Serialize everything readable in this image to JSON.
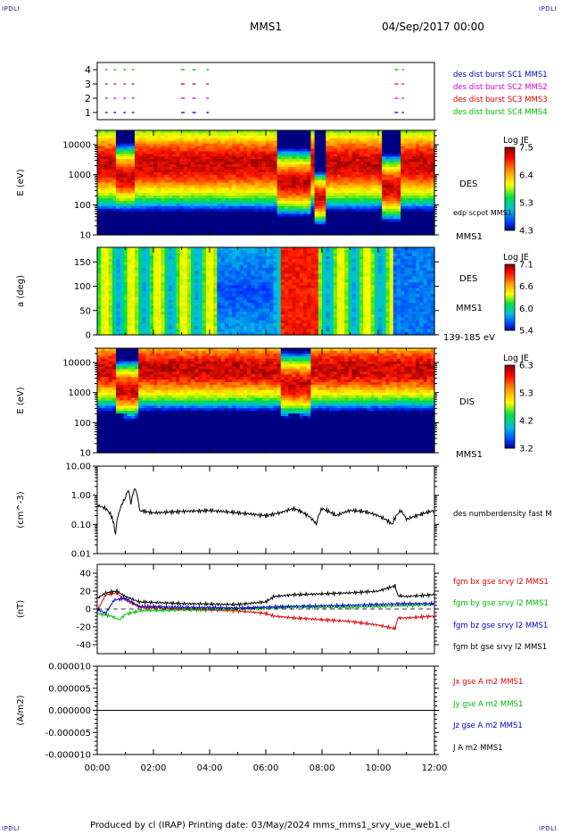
{
  "corners": {
    "tl": "IPDLI",
    "tr": "IPDLI",
    "bl": "IPDLI",
    "br": "IPDLI"
  },
  "header": {
    "spacecraft": "MMS1",
    "datetime": "04/Sep/2017 00:00"
  },
  "footer": "Produced by cl (IRAP)   Printing date: 03/May/2024   mms_mms1_srvy_vue_web1.cl",
  "time_axis": [
    "00:00",
    "02:00",
    "04:00",
    "06:00",
    "08:00",
    "10:00",
    "12:00"
  ],
  "colors": {
    "red": "#dd0000",
    "green": "#00bb00",
    "blue": "#0000cc",
    "magenta": "#dd00dd",
    "black": "#000000"
  },
  "chart_data": [
    {
      "type": "timeline",
      "panel": "burst-availability",
      "yticks": [
        "1",
        "2",
        "3",
        "4"
      ],
      "legend": [
        {
          "label": "des dist burst SC1 MMS1",
          "color": "#0000cc"
        },
        {
          "label": "des dist burst SC2 MMS2",
          "color": "#dd00dd"
        },
        {
          "label": "des dist burst SC3 MMS3",
          "color": "#dd0000"
        },
        {
          "label": "des dist burst SC4 MMS4",
          "color": "#00bb00"
        }
      ],
      "intervals_hours": [
        [
          0.25,
          0.4
        ],
        [
          0.55,
          0.7
        ],
        [
          0.9,
          1.05
        ],
        [
          1.2,
          1.35
        ],
        [
          2.95,
          3.15
        ],
        [
          3.35,
          3.55
        ],
        [
          3.85,
          4.0
        ],
        [
          10.55,
          10.95
        ]
      ]
    },
    {
      "type": "heatmap",
      "panel": "des-energy",
      "ylabel": "E (eV)",
      "yscale": "log",
      "ylim": [
        10,
        30000
      ],
      "yticks": [
        "10",
        "100",
        "1000",
        "10000"
      ],
      "right_labels": [
        "DES",
        "edp scpot MMS1",
        "MMS1"
      ],
      "colorbar": {
        "title": "Log JE",
        "ticks": [
          "7.5",
          "6.4",
          "5.3",
          "4.3"
        ]
      }
    },
    {
      "type": "heatmap",
      "panel": "des-pitch-angle",
      "ylabel": "a (deg)",
      "ylim": [
        0,
        180
      ],
      "yticks": [
        "0",
        "50",
        "100",
        "150"
      ],
      "right_labels": [
        "DES",
        "MMS1",
        "139-185 eV"
      ],
      "colorbar": {
        "title": "Log JE",
        "ticks": [
          "7.1",
          "6.6",
          "6.0",
          "5.4"
        ]
      }
    },
    {
      "type": "heatmap",
      "panel": "dis-energy",
      "ylabel": "E (eV)",
      "yscale": "log",
      "ylim": [
        10,
        30000
      ],
      "yticks": [
        "10",
        "100",
        "1000",
        "10000"
      ],
      "right_labels": [
        "DIS",
        "MMS1"
      ],
      "colorbar": {
        "title": "Log JE",
        "ticks": [
          "6.3",
          "5.3",
          "4.2",
          "3.2"
        ]
      }
    },
    {
      "type": "line",
      "panel": "density",
      "ylabel": "(cm^-3)",
      "yscale": "log",
      "ylim": [
        0.01,
        10
      ],
      "yticks": [
        "0.01",
        "0.10",
        "1.00",
        "10.00"
      ],
      "series": [
        {
          "name": "des numberdensity fast M",
          "color": "#000000",
          "points": [
            [
              0,
              0.45
            ],
            [
              0.3,
              0.35
            ],
            [
              0.5,
              0.2
            ],
            [
              0.65,
              0.04
            ],
            [
              0.8,
              0.3
            ],
            [
              1.0,
              0.8
            ],
            [
              1.1,
              1.5
            ],
            [
              1.2,
              0.5
            ],
            [
              1.35,
              1.8
            ],
            [
              1.5,
              0.3
            ],
            [
              2.0,
              0.25
            ],
            [
              3.0,
              0.28
            ],
            [
              4.0,
              0.3
            ],
            [
              5.0,
              0.25
            ],
            [
              6.0,
              0.2
            ],
            [
              6.5,
              0.25
            ],
            [
              7.0,
              0.35
            ],
            [
              7.5,
              0.2
            ],
            [
              7.8,
              0.1
            ],
            [
              8.0,
              0.35
            ],
            [
              8.5,
              0.2
            ],
            [
              9.0,
              0.3
            ],
            [
              9.5,
              0.28
            ],
            [
              10.0,
              0.2
            ],
            [
              10.5,
              0.1
            ],
            [
              10.8,
              0.3
            ],
            [
              11.0,
              0.15
            ],
            [
              11.5,
              0.22
            ],
            [
              12.0,
              0.3
            ]
          ]
        }
      ]
    },
    {
      "type": "line",
      "panel": "magnetic-field",
      "ylabel": "(nT)",
      "ylim": [
        -50,
        50
      ],
      "yticks": [
        "-40",
        "-20",
        "0",
        "20",
        "40"
      ],
      "series": [
        {
          "name": "fgm bx gse srvy l2 MMS1",
          "color": "#dd0000",
          "points": [
            [
              0,
              -2
            ],
            [
              0.3,
              16
            ],
            [
              0.7,
              18
            ],
            [
              1.0,
              10
            ],
            [
              1.5,
              2
            ],
            [
              3,
              0
            ],
            [
              5,
              -2
            ],
            [
              6,
              -5
            ],
            [
              6.3,
              -8
            ],
            [
              7,
              -10
            ],
            [
              8,
              -12
            ],
            [
              9,
              -14
            ],
            [
              10,
              -18
            ],
            [
              10.6,
              -22
            ],
            [
              10.7,
              -10
            ],
            [
              11,
              -10
            ],
            [
              12,
              -8
            ]
          ]
        },
        {
          "name": "fgm by gse srvy l2 MMS1",
          "color": "#00bb00",
          "points": [
            [
              0,
              -5
            ],
            [
              0.5,
              -8
            ],
            [
              0.8,
              -12
            ],
            [
              1.0,
              -6
            ],
            [
              1.5,
              -2
            ],
            [
              3,
              -1
            ],
            [
              5,
              0
            ],
            [
              6,
              1
            ],
            [
              7,
              2
            ],
            [
              9,
              2
            ],
            [
              10,
              3
            ],
            [
              11,
              4
            ],
            [
              12,
              5
            ]
          ]
        },
        {
          "name": "fgm bz gse srvy l2 MMS1",
          "color": "#0000cc",
          "points": [
            [
              0,
              0
            ],
            [
              0.3,
              -5
            ],
            [
              0.6,
              10
            ],
            [
              1.0,
              12
            ],
            [
              1.5,
              3
            ],
            [
              3,
              2
            ],
            [
              5,
              1
            ],
            [
              6,
              2
            ],
            [
              7,
              3
            ],
            [
              9,
              4
            ],
            [
              10,
              5
            ],
            [
              11,
              6
            ],
            [
              12,
              6
            ]
          ]
        },
        {
          "name": "fgm bt gse srvy l2 MMS1",
          "color": "#000000",
          "points": [
            [
              0,
              12
            ],
            [
              0.3,
              18
            ],
            [
              0.7,
              20
            ],
            [
              1.0,
              14
            ],
            [
              1.5,
              8
            ],
            [
              3,
              6
            ],
            [
              5,
              5
            ],
            [
              6,
              8
            ],
            [
              6.3,
              14
            ],
            [
              7,
              16
            ],
            [
              8,
              17
            ],
            [
              9,
              18
            ],
            [
              10,
              20
            ],
            [
              10.6,
              26
            ],
            [
              10.7,
              15
            ],
            [
              11,
              14
            ],
            [
              12,
              16
            ]
          ]
        }
      ]
    },
    {
      "type": "line",
      "panel": "current-density",
      "ylabel": "(A/m2)",
      "ylim": [
        -1e-05,
        1e-05
      ],
      "yticks": [
        "-0.000010",
        "-0.000005",
        "0.000000",
        "0.000005",
        "0.000010"
      ],
      "series": [
        {
          "name": "Jx gse A m2 MMS1",
          "color": "#dd0000",
          "points": [
            [
              0,
              0
            ],
            [
              12,
              0
            ]
          ]
        },
        {
          "name": "Jy gse A m2 MMS1",
          "color": "#00bb00",
          "points": [
            [
              0,
              0
            ],
            [
              12,
              0
            ]
          ]
        },
        {
          "name": "Jz gse A m2 MMS1",
          "color": "#0000cc",
          "points": [
            [
              0,
              0
            ],
            [
              12,
              0
            ]
          ]
        },
        {
          "name": "J A m2 MMS1",
          "color": "#000000",
          "points": [
            [
              0,
              0
            ],
            [
              12,
              0
            ]
          ]
        }
      ]
    }
  ]
}
